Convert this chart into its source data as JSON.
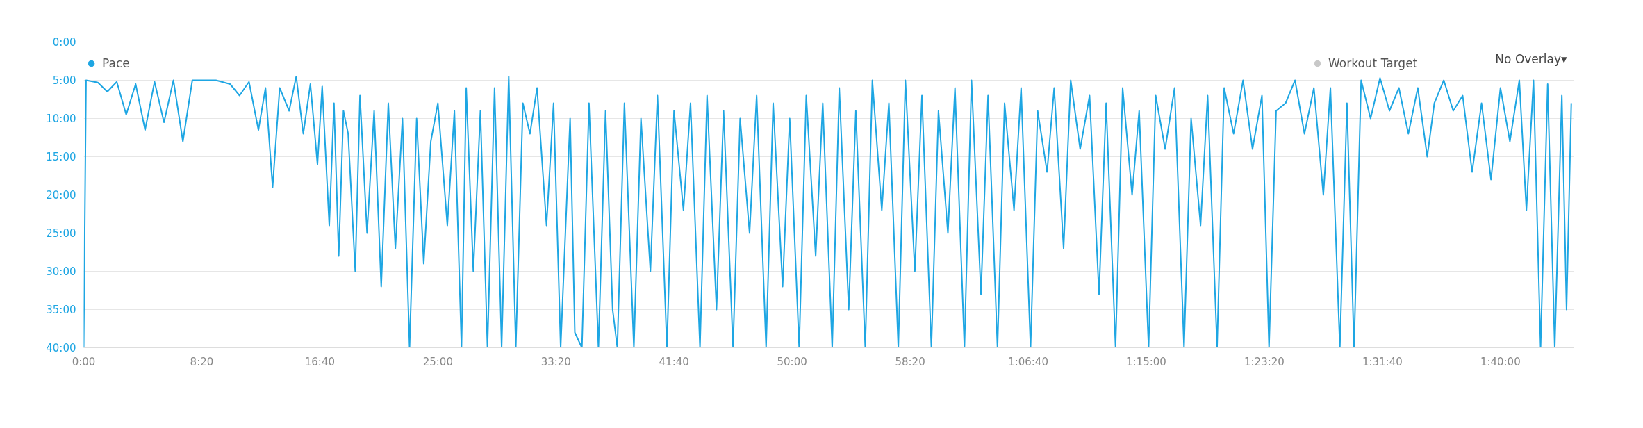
{
  "chart_data": {
    "type": "line",
    "legend": "top",
    "grid": "y",
    "marker": "none",
    "annotations": [
      "No Overlay▾"
    ],
    "x": [
      0,
      10,
      60,
      100,
      140,
      180,
      220,
      260,
      300,
      340,
      380,
      420,
      460,
      560,
      620,
      660,
      700,
      740,
      770,
      800,
      830,
      870,
      900,
      930,
      960,
      990,
      1010,
      1040,
      1060,
      1080,
      1100,
      1120,
      1150,
      1170,
      1200,
      1230,
      1260,
      1290,
      1320,
      1350,
      1380,
      1410,
      1440,
      1470,
      1500,
      1540,
      1570,
      1600,
      1620,
      1650,
      1680,
      1710,
      1740,
      1770,
      1800,
      1830,
      1860,
      1890,
      1920,
      1960,
      1990,
      2020,
      2060,
      2080,
      2110,
      2140,
      2180,
      2210,
      2240,
      2260,
      2290,
      2330,
      2360,
      2400,
      2430,
      2470,
      2500,
      2540,
      2570,
      2610,
      2640,
      2680,
      2710,
      2750,
      2780,
      2820,
      2850,
      2890,
      2920,
      2960,
      2990,
      3030,
      3060,
      3100,
      3130,
      3170,
      3200,
      3240,
      3270,
      3310,
      3340,
      3380,
      3410,
      3450,
      3480,
      3520,
      3550,
      3590,
      3620,
      3660,
      3690,
      3730,
      3760,
      3800,
      3830,
      3870,
      3900,
      3940,
      3970,
      4010,
      4040,
      4080,
      4110,
      4150,
      4180,
      4220,
      4260,
      4300,
      4330,
      4370,
      4400,
      4440,
      4470,
      4510,
      4540,
      4580,
      4620,
      4660,
      4690,
      4730,
      4760,
      4800,
      4830,
      4870,
      4910,
      4950,
      4990,
      5020,
      5050,
      5090,
      5130,
      5170,
      5210,
      5250,
      5280,
      5320,
      5350,
      5380,
      5410,
      5450,
      5490,
      5530,
      5570,
      5610,
      5650,
      5690,
      5720,
      5760,
      5800,
      5840,
      5880,
      5920,
      5960,
      6000,
      6040,
      6080,
      6110,
      6140,
      6170,
      6200,
      6230,
      6260,
      6280,
      6300
    ],
    "series": [
      {
        "name": "Pace",
        "color": "#1ea6e3",
        "values": [
          40,
          5,
          5.3,
          6.5,
          5.2,
          9.5,
          5.5,
          11.5,
          5.2,
          10.5,
          5,
          13,
          5,
          5,
          5.5,
          7,
          5.2,
          11.5,
          6,
          19,
          6,
          9,
          4.5,
          12,
          5.5,
          16,
          5.8,
          24,
          8,
          28,
          9,
          12,
          30,
          7,
          25,
          9,
          32,
          8,
          27,
          10,
          40,
          10,
          29,
          13,
          8,
          24,
          9,
          40,
          6,
          30,
          9,
          40,
          6,
          40,
          4.5,
          40,
          8,
          12,
          6,
          24,
          8,
          40,
          10,
          38,
          40,
          8,
          40,
          9,
          35,
          40,
          8,
          40,
          10,
          30,
          7,
          40,
          9,
          22,
          8,
          40,
          7,
          35,
          9,
          40,
          10,
          25,
          7,
          40,
          8,
          32,
          10,
          40,
          7,
          28,
          8,
          40,
          6,
          35,
          9,
          40,
          5,
          22,
          8,
          40,
          5,
          30,
          7,
          40,
          9,
          25,
          6,
          40,
          5,
          33,
          7,
          40,
          8,
          22,
          6,
          40,
          9,
          17,
          6,
          27,
          5,
          14,
          7,
          33,
          8,
          40,
          6,
          20,
          9,
          40,
          7,
          14,
          6,
          40,
          10,
          24,
          7,
          40,
          6,
          12,
          5,
          14,
          7,
          40,
          9,
          8,
          5,
          12,
          6,
          20,
          6,
          40,
          8,
          40,
          5,
          10,
          4.7,
          9,
          6,
          12,
          6,
          15,
          8,
          5,
          9,
          7,
          17,
          8,
          18,
          6,
          13,
          5,
          22,
          5,
          40,
          5.5,
          40,
          7,
          35,
          8
        ]
      },
      {
        "name": "Workout Target",
        "color": "#c8c8c8",
        "values": [
          null,
          null,
          null,
          null,
          null,
          null,
          null,
          null,
          null,
          null,
          null,
          null,
          null,
          null,
          null,
          null,
          null,
          null,
          null,
          null,
          null,
          null,
          null,
          null,
          null,
          null,
          null,
          null,
          null,
          null,
          null,
          null,
          null,
          null,
          null,
          null,
          null,
          null,
          null,
          null,
          null,
          null,
          null,
          null,
          null,
          null,
          null,
          null,
          null,
          null,
          null,
          null,
          null,
          null,
          null,
          null,
          null,
          null,
          null,
          null,
          null,
          null,
          null,
          null,
          null,
          null,
          null,
          null,
          null,
          null,
          null,
          null,
          null,
          null,
          null,
          null,
          null,
          null,
          null,
          null,
          null,
          null,
          null,
          null,
          null,
          null,
          null,
          null,
          null,
          null,
          null,
          null,
          null,
          null,
          null,
          null,
          null,
          null,
          null,
          null,
          null,
          null,
          null,
          null,
          null,
          null,
          null,
          null,
          null,
          null,
          null,
          null,
          null,
          null,
          null,
          null,
          null,
          null,
          null,
          null,
          null,
          null,
          null,
          null,
          null,
          null,
          null,
          null,
          null,
          null,
          null,
          null,
          null,
          null,
          null,
          null,
          null,
          null,
          null,
          null,
          null,
          null,
          null,
          null,
          null,
          null,
          null,
          null,
          null,
          null,
          null,
          null,
          null,
          null,
          null,
          null,
          null,
          null,
          null,
          null,
          null,
          null,
          null,
          null,
          null,
          null,
          null,
          null,
          null,
          null,
          null,
          null,
          null,
          null,
          null,
          null,
          null,
          null,
          null,
          null,
          null,
          null,
          null,
          null
        ]
      }
    ],
    "xlim": [
      0,
      6311
    ],
    "ylim": [
      40,
      0
    ],
    "xticks": [
      {
        "value": 0,
        "label": "0:00"
      },
      {
        "value": 500,
        "label": "8:20"
      },
      {
        "value": 1000,
        "label": "16:40"
      },
      {
        "value": 1500,
        "label": "25:00"
      },
      {
        "value": 2000,
        "label": "33:20"
      },
      {
        "value": 2500,
        "label": "41:40"
      },
      {
        "value": 3000,
        "label": "50:00"
      },
      {
        "value": 3500,
        "label": "58:20"
      },
      {
        "value": 4000,
        "label": "1:06:40"
      },
      {
        "value": 4500,
        "label": "1:15:00"
      },
      {
        "value": 5000,
        "label": "1:23:20"
      },
      {
        "value": 5500,
        "label": "1:31:40"
      },
      {
        "value": 6000,
        "label": "1:40:00"
      }
    ],
    "yticks": [
      {
        "value": 0,
        "label": "0:00"
      },
      {
        "value": 5,
        "label": "5:00"
      },
      {
        "value": 10,
        "label": "10:00"
      },
      {
        "value": 15,
        "label": "15:00"
      },
      {
        "value": 20,
        "label": "20:00"
      },
      {
        "value": 25,
        "label": "25:00"
      },
      {
        "value": 30,
        "label": "30:00"
      },
      {
        "value": 35,
        "label": "35:00"
      },
      {
        "value": 40,
        "label": "40:00"
      }
    ]
  }
}
